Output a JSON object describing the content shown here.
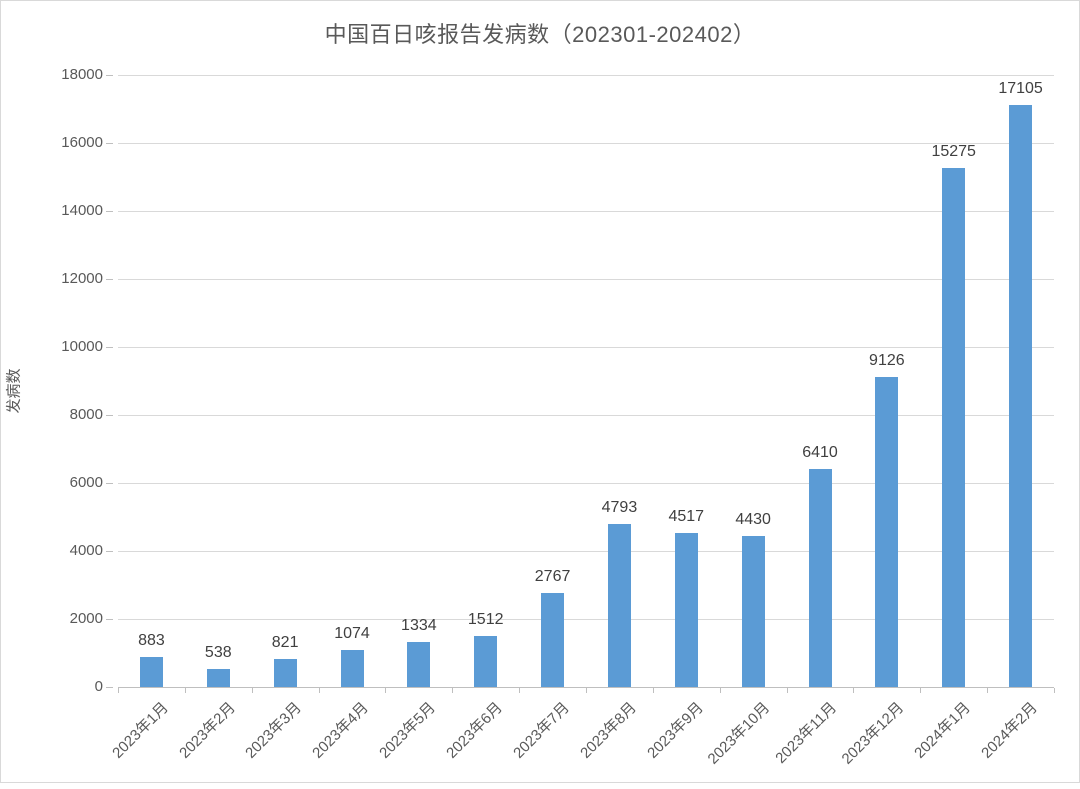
{
  "chart_data": {
    "type": "bar",
    "title": "中国百日咳报告发病数（202301-202402）",
    "ylabel": "发病数",
    "xlabel": "",
    "categories": [
      "2023年1月",
      "2023年2月",
      "2023年3月",
      "2023年4月",
      "2023年5月",
      "2023年6月",
      "2023年7月",
      "2023年8月",
      "2023年9月",
      "2023年10月",
      "2023年11月",
      "2023年12月",
      "2024年1月",
      "2024年2月"
    ],
    "values": [
      883,
      538,
      821,
      1074,
      1334,
      1512,
      2767,
      4793,
      4517,
      4430,
      6410,
      9126,
      15275,
      17105
    ],
    "ylim": [
      0,
      18000
    ],
    "ytick_step": 2000,
    "ytick_labels": [
      "0",
      "2000",
      "4000",
      "6000",
      "8000",
      "10000",
      "12000",
      "14000",
      "16000",
      "18000"
    ],
    "grid": true,
    "legend": false,
    "data_labels": true,
    "bar_color": "#5B9BD5"
  },
  "colors": {
    "bar": "#5B9BD5",
    "gridline": "#D9D9D9",
    "axis_line": "#BFBFBF",
    "axis_text": "#595959",
    "data_label_text": "#404040",
    "title_text": "#595959"
  }
}
